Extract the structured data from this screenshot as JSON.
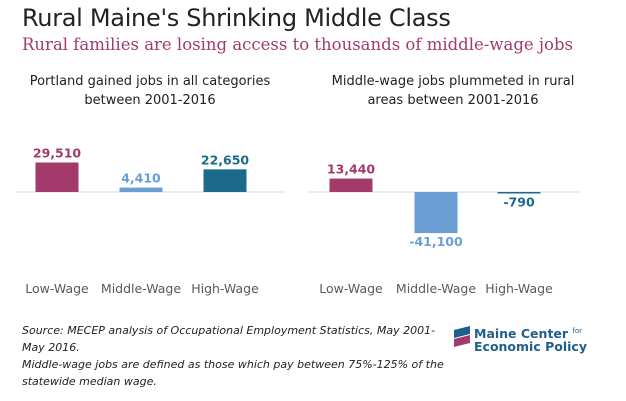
{
  "title": "Rural Maine's Shrinking Middle Class",
  "subtitle": "Rural families are losing access to thousands of middle-wage jobs",
  "source_line1": "Source: MECEP analysis of Occupational Employment Statistics, May 2001-May 2016.",
  "source_line2": "Middle-wage jobs are defined as those which pay between 75%-125% of the",
  "source_line3": "statewide median wage.",
  "logo": {
    "line1": "Maine Center",
    "line1_small": "for",
    "line2": "Economic Policy"
  },
  "colors": {
    "low_wage": "#a23b6c",
    "middle_wage": "#6b9fd4",
    "high_wage": "#1b6a8c",
    "axis": "#d9d9d9",
    "category_text": "#595959"
  },
  "chart_data": [
    {
      "type": "bar",
      "title": "Portland gained jobs in all categories between 2001-2016",
      "title_lines": [
        "Portland gained jobs in all categories",
        "between 2001-2016"
      ],
      "categories": [
        "Low-Wage",
        "Middle-Wage",
        "High-Wage"
      ],
      "values": [
        29510,
        4410,
        22650
      ],
      "value_labels": [
        "29,510",
        "4,410",
        "22,650"
      ],
      "grid": false,
      "legend": "none"
    },
    {
      "type": "bar",
      "title": "Middle-wage jobs plummeted in rural areas between 2001-2016",
      "title_lines": [
        "Middle-wage jobs plummeted in rural",
        "areas between 2001-2016"
      ],
      "categories": [
        "Low-Wage",
        "Middle-Wage",
        "High-Wage"
      ],
      "values": [
        13440,
        -41100,
        -790
      ],
      "value_labels": [
        "13,440",
        "-41,100",
        "-790"
      ],
      "grid": false,
      "legend": "none"
    }
  ]
}
